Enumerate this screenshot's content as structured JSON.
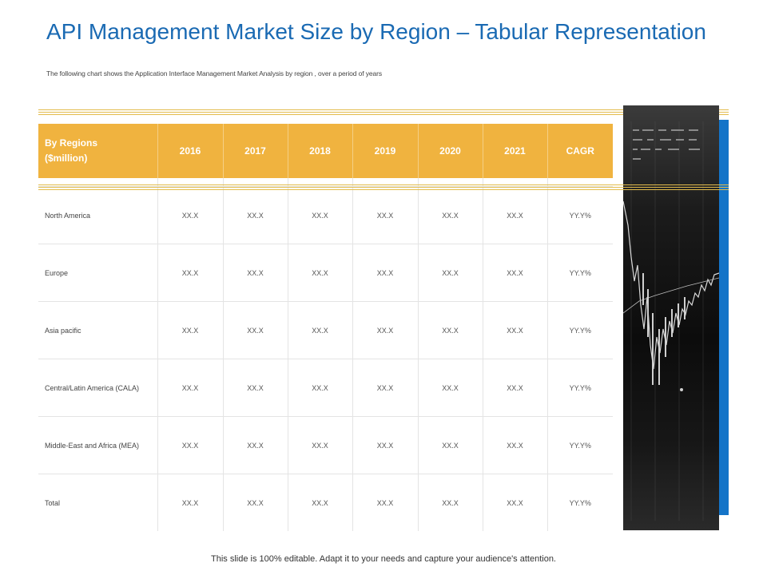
{
  "title": "API Management Market Size by Region – Tabular Representation",
  "subtitle": "The following chart shows the Application Interface Management Market Analysis by region , over a period of years",
  "table": {
    "header": {
      "region_label": "By Regions ($million)",
      "columns": [
        "2016",
        "2017",
        "2018",
        "2019",
        "2020",
        "2021",
        "CAGR"
      ]
    },
    "rows": [
      {
        "region": "North America",
        "values": [
          "XX.X",
          "XX.X",
          "XX.X",
          "XX.X",
          "XX.X",
          "XX.X",
          "YY.Y%"
        ]
      },
      {
        "region": "Europe",
        "values": [
          "XX.X",
          "XX.X",
          "XX.X",
          "XX.X",
          "XX.X",
          "XX.X",
          "YY.Y%"
        ]
      },
      {
        "region": "Asia pacific",
        "values": [
          "XX.X",
          "XX.X",
          "XX.X",
          "XX.X",
          "XX.X",
          "XX.X",
          "YY.Y%"
        ]
      },
      {
        "region": "Central/Latin America (CALA)",
        "values": [
          "XX.X",
          "XX.X",
          "XX.X",
          "XX.X",
          "XX.X",
          "XX.X",
          "YY.Y%"
        ]
      },
      {
        "region": "Middle-East and Africa (MEA)",
        "values": [
          "XX.X",
          "XX.X",
          "XX.X",
          "XX.X",
          "XX.X",
          "XX.X",
          "YY.Y%"
        ]
      },
      {
        "region": "Total",
        "values": [
          "XX.X",
          "XX.X",
          "XX.X",
          "XX.X",
          "XX.X",
          "XX.X",
          "YY.Y%"
        ]
      }
    ]
  },
  "footer": "This slide is 100% editable. Adapt it to your needs and capture your audience's attention.",
  "colors": {
    "title": "#1a6ab3",
    "header_bg": "#f0b33f",
    "gold_line": "#e3bc4c",
    "accent_bar": "#1474c8"
  },
  "image": {
    "icon": "stock-chart-photo-icon"
  }
}
